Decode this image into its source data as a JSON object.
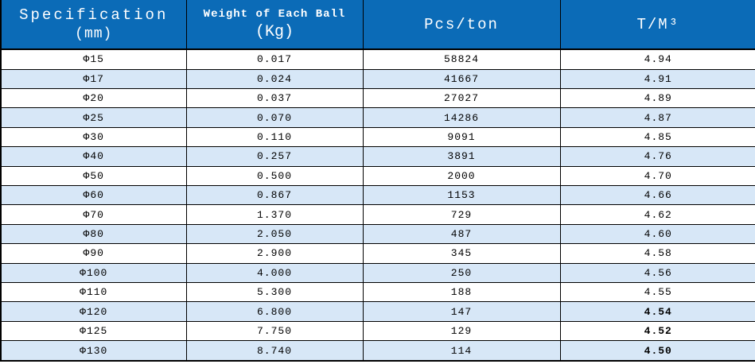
{
  "colors": {
    "header_bg": "#0b6bb7",
    "header_text": "#ffffff",
    "row_bg": "#ffffff",
    "row_alt_bg": "#d7e7f7",
    "border": "#000000",
    "text": "#000000"
  },
  "table": {
    "headers": [
      {
        "line1": "Specification",
        "line2": "(mm)"
      },
      {
        "line1": "Weight of Each Ball",
        "line2": "(Kg)"
      },
      {
        "line1": "Pcs/ton",
        "line2": ""
      },
      {
        "line1": "T/M³",
        "line2": ""
      }
    ],
    "rows": [
      {
        "spec": "Φ15",
        "weight": "0.017",
        "pcs": "58824",
        "tm3": "4.94",
        "tm3_bold": false
      },
      {
        "spec": "Φ17",
        "weight": "0.024",
        "pcs": "41667",
        "tm3": "4.91",
        "tm3_bold": false
      },
      {
        "spec": "Φ20",
        "weight": "0.037",
        "pcs": "27027",
        "tm3": "4.89",
        "tm3_bold": false
      },
      {
        "spec": "Φ25",
        "weight": "0.070",
        "pcs": "14286",
        "tm3": "4.87",
        "tm3_bold": false
      },
      {
        "spec": "Φ30",
        "weight": "0.110",
        "pcs": "9091",
        "tm3": "4.85",
        "tm3_bold": false
      },
      {
        "spec": "Φ40",
        "weight": "0.257",
        "pcs": "3891",
        "tm3": "4.76",
        "tm3_bold": false
      },
      {
        "spec": "Φ50",
        "weight": "0.500",
        "pcs": "2000",
        "tm3": "4.70",
        "tm3_bold": false
      },
      {
        "spec": "Φ60",
        "weight": "0.867",
        "pcs": "1153",
        "tm3": "4.66",
        "tm3_bold": false
      },
      {
        "spec": "Φ70",
        "weight": "1.370",
        "pcs": "729",
        "tm3": "4.62",
        "tm3_bold": false
      },
      {
        "spec": "Φ80",
        "weight": "2.050",
        "pcs": "487",
        "tm3": "4.60",
        "tm3_bold": false
      },
      {
        "spec": "Φ90",
        "weight": "2.900",
        "pcs": "345",
        "tm3": "4.58",
        "tm3_bold": false
      },
      {
        "spec": "Φ100",
        "weight": "4.000",
        "pcs": "250",
        "tm3": "4.56",
        "tm3_bold": false
      },
      {
        "spec": "Φ110",
        "weight": "5.300",
        "pcs": "188",
        "tm3": "4.55",
        "tm3_bold": false
      },
      {
        "spec": "Φ120",
        "weight": "6.800",
        "pcs": "147",
        "tm3": "4.54",
        "tm3_bold": true
      },
      {
        "spec": "Φ125",
        "weight": "7.750",
        "pcs": "129",
        "tm3": "4.52",
        "tm3_bold": true
      },
      {
        "spec": "Φ130",
        "weight": "8.740",
        "pcs": "114",
        "tm3": "4.50",
        "tm3_bold": true
      }
    ]
  }
}
